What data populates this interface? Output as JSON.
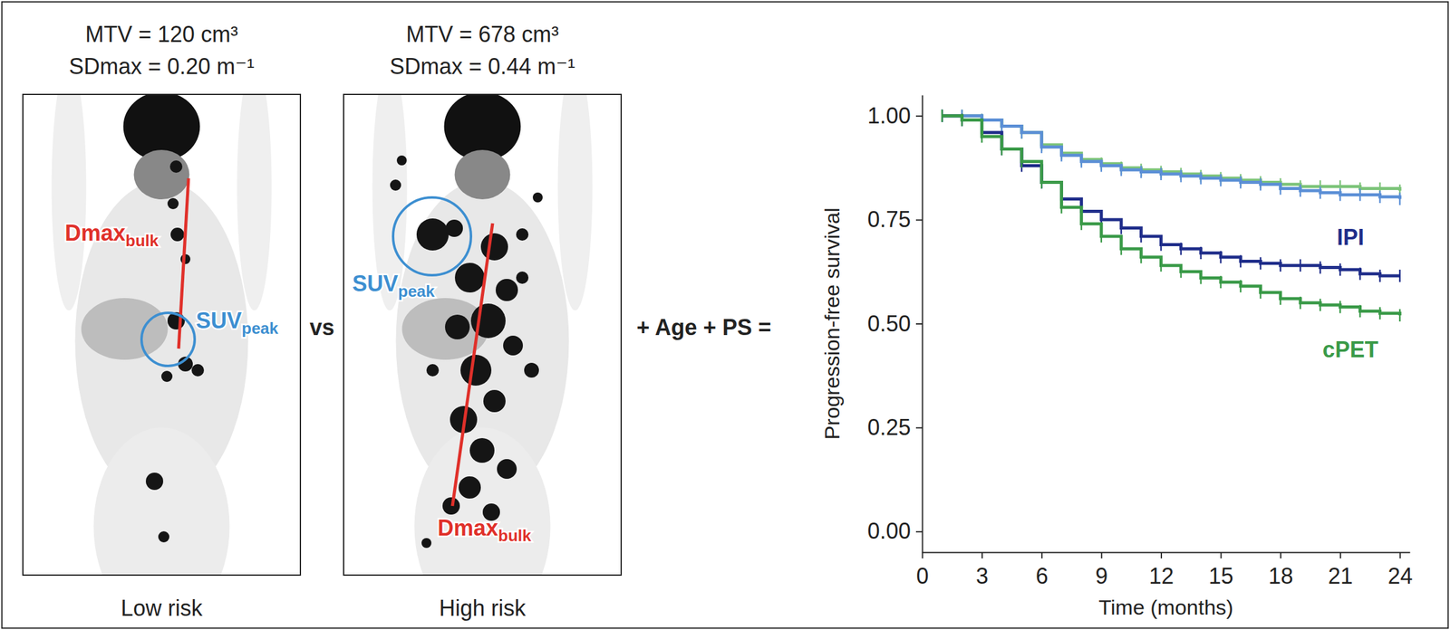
{
  "figure": {
    "panels": [
      {
        "mtv": "MTV = 120 cm³",
        "sdmax": "SDmax = 0.20 m⁻¹",
        "caption": "Low risk",
        "dmax_label": {
          "text": "Dmax",
          "subscript": "bulk"
        },
        "suv_label": {
          "text": "SUV",
          "subscript": "peak"
        }
      },
      {
        "mtv": "MTV = 678 cm³",
        "sdmax": "SDmax = 0.44 m⁻¹",
        "caption": "High risk",
        "dmax_label": {
          "text": "Dmax",
          "subscript": "bulk"
        },
        "suv_label": {
          "text": "SUV",
          "subscript": "peak"
        }
      }
    ],
    "between_text": "vs",
    "operator_text": "+ Age + PS ="
  },
  "chart_data": {
    "type": "line",
    "line_style": "step",
    "marker": "censor",
    "x_label": "Time (months)",
    "y_label": "Progression-free survival",
    "x": [
      1,
      2,
      3,
      4,
      5,
      6,
      7,
      8,
      9,
      10,
      11,
      12,
      13,
      14,
      15,
      16,
      17,
      18,
      19,
      20,
      21,
      22,
      23,
      24
    ],
    "series": [
      {
        "color": "#7dc47a",
        "values": [
          1.0,
          1.0,
          0.99,
          0.975,
          0.96,
          0.93,
          0.91,
          0.895,
          0.885,
          0.875,
          0.87,
          0.865,
          0.86,
          0.855,
          0.85,
          0.845,
          0.84,
          0.835,
          0.83,
          0.83,
          0.83,
          0.825,
          0.825,
          0.82
        ]
      },
      {
        "color": "#5b8fd6",
        "values": [
          1.0,
          1.0,
          0.99,
          0.975,
          0.96,
          0.925,
          0.905,
          0.89,
          0.88,
          0.87,
          0.865,
          0.86,
          0.855,
          0.85,
          0.845,
          0.84,
          0.835,
          0.825,
          0.82,
          0.815,
          0.81,
          0.81,
          0.805,
          0.8
        ]
      },
      {
        "name": "IPI",
        "color": "#1f2d8a",
        "values": [
          1.0,
          0.99,
          0.96,
          0.92,
          0.88,
          0.84,
          0.8,
          0.77,
          0.75,
          0.73,
          0.71,
          0.69,
          0.68,
          0.67,
          0.66,
          0.65,
          0.645,
          0.64,
          0.64,
          0.635,
          0.63,
          0.62,
          0.615,
          0.615
        ]
      },
      {
        "name": "cPET",
        "color": "#3a9a48",
        "values": [
          1.0,
          0.99,
          0.95,
          0.92,
          0.89,
          0.84,
          0.78,
          0.74,
          0.71,
          0.68,
          0.66,
          0.64,
          0.625,
          0.61,
          0.6,
          0.59,
          0.575,
          0.56,
          0.55,
          0.545,
          0.54,
          0.53,
          0.525,
          0.52
        ]
      }
    ],
    "xlim": [
      0,
      24.5
    ],
    "ylim": [
      -0.05,
      1.05
    ],
    "xticks": [
      0,
      3,
      6,
      9,
      12,
      15,
      18,
      21,
      24
    ],
    "yticks": [
      {
        "value": 0,
        "label": "0.00"
      },
      {
        "value": 0.25,
        "label": "0.25"
      },
      {
        "value": 0.5,
        "label": "0.50"
      },
      {
        "value": 0.75,
        "label": "0.75"
      },
      {
        "value": 1,
        "label": "1.00"
      }
    ],
    "grid": false
  }
}
